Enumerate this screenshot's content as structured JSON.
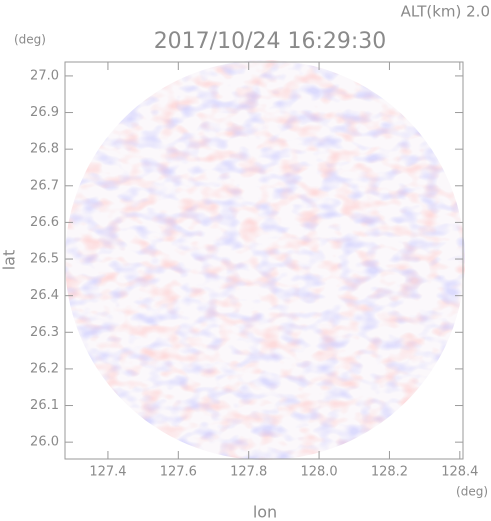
{
  "chart_data": {
    "type": "radar",
    "title": "2017/10/24 16:29:30",
    "subtitle": "ALT(km) 2.0",
    "x_label": "lon",
    "y_label": "lat",
    "x_unit": "(deg)",
    "y_unit": "(deg)",
    "xlim": [
      127.278,
      128.409
    ],
    "ylim": [
      25.954,
      27.038
    ],
    "xticks": [
      127.4,
      127.6,
      127.8,
      {
        "value": 128,
        "label": "128.0"
      },
      128.2,
      128.4
    ],
    "yticks": [
      {
        "value": 26,
        "label": "26.0"
      },
      26.1,
      26.2,
      26.3,
      26.4,
      26.5,
      26.6,
      26.7,
      26.8,
      26.9,
      {
        "value": 27,
        "label": "27.0"
      }
    ]
  }
}
